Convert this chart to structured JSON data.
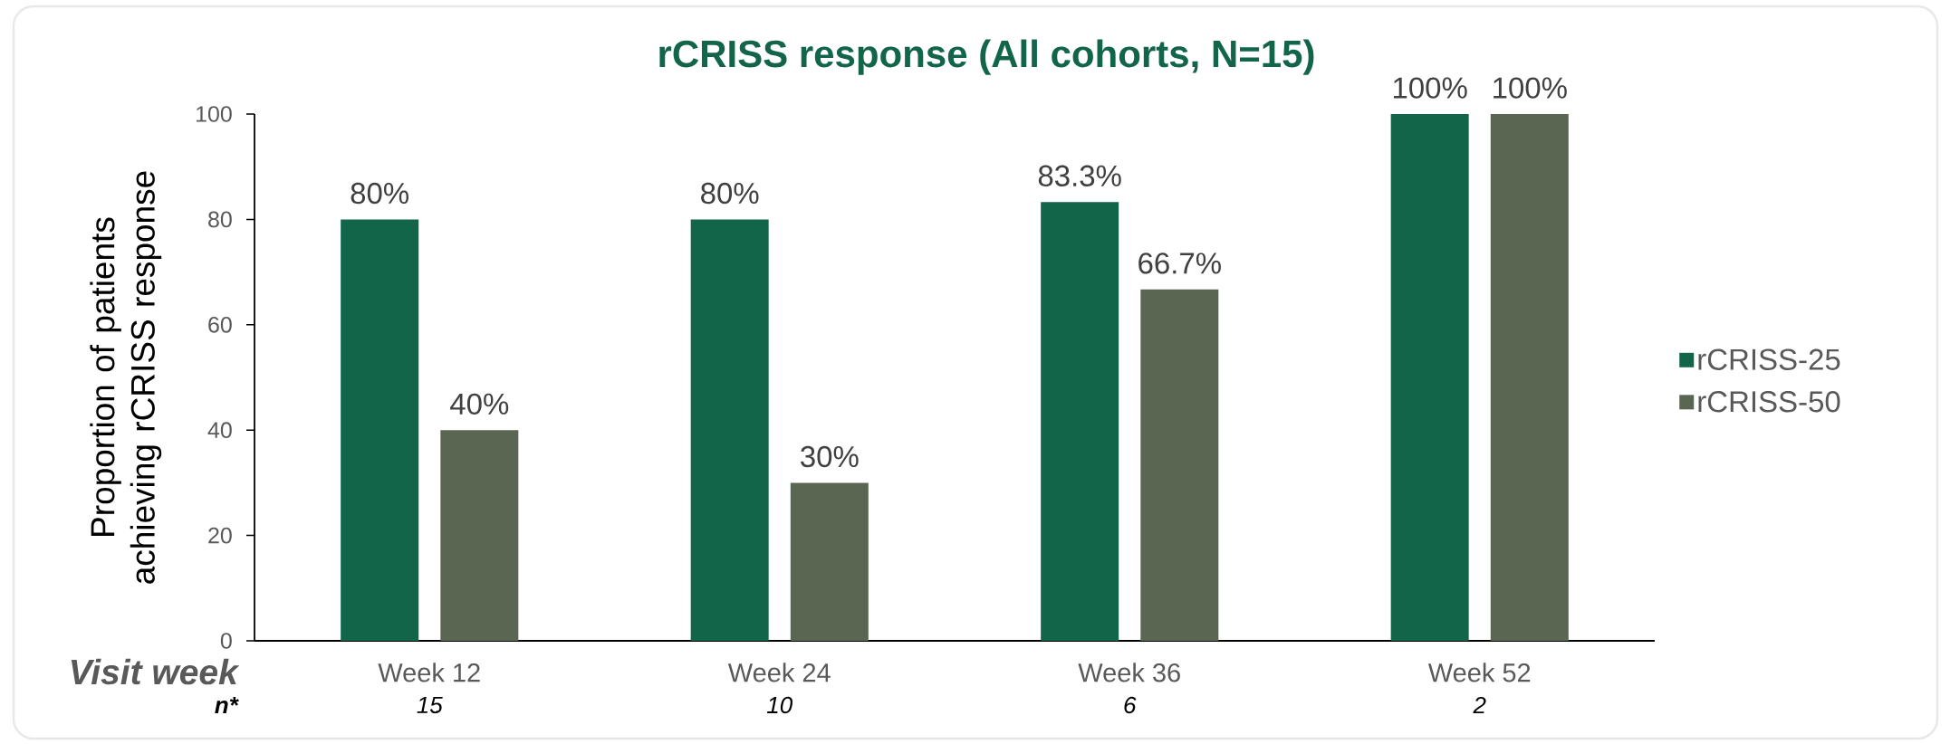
{
  "chart_data": {
    "type": "bar",
    "title": "rCRISS response (All cohorts, N=15)",
    "xlabel": "Visit week",
    "ylabel": "Proportion of patients achieving rCRISS response",
    "categories": [
      "Week 12",
      "Week 24",
      "Week 36",
      "Week 52"
    ],
    "series": [
      {
        "name": "rCRISS-25",
        "color": "#126549",
        "values": [
          80,
          80,
          83.3,
          100
        ],
        "value_labels": [
          "80%",
          "80%",
          "83.3%",
          "100%"
        ]
      },
      {
        "name": "rCRISS-50",
        "color": "#5a6651",
        "values": [
          40,
          30,
          66.7,
          100
        ],
        "value_labels": [
          "40%",
          "30%",
          "66.7%",
          "100%"
        ]
      }
    ],
    "ylim": [
      0,
      100
    ],
    "yticks": [
      0,
      20,
      40,
      60,
      80,
      100
    ],
    "legend": "right",
    "annotations": [
      "n*",
      "15",
      "10",
      "6",
      "2"
    ]
  }
}
